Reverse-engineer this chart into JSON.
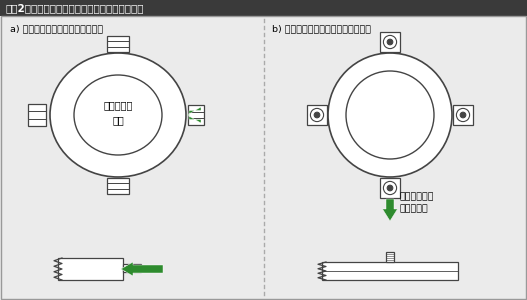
{
  "title": "【図2】締結力の作用方向と変形のし易さの関係",
  "title_bg": "#3a3a3a",
  "title_color": "#ffffff",
  "bg_color": "#ebebeb",
  "label_a": "a) 変形し易い方向への締結力作用",
  "label_b": "b) 変形しにくい方向への締結力作用",
  "text_a_center": "変形し易い\n方向",
  "text_b_note": "変形しにくい\n方向に変更",
  "arrow_color": "#2e8b2e",
  "line_color": "#444444",
  "border_color": "#888888"
}
